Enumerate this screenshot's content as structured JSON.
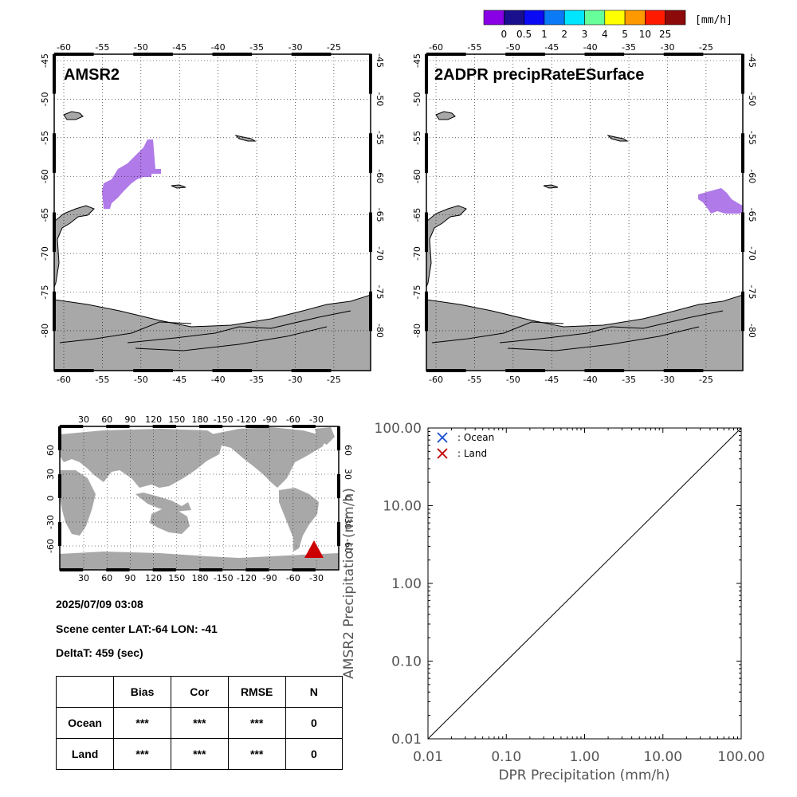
{
  "colorbar": {
    "unit": "[mm/h]",
    "ticks": [
      "0",
      "0.5",
      "1",
      "2",
      "3",
      "4",
      "5",
      "10",
      "25"
    ],
    "colors": [
      "#8a00e6",
      "#1a0f8c",
      "#0a0af5",
      "#0a7af5",
      "#00e6ff",
      "#66ff99",
      "#ffff00",
      "#ff9900",
      "#ff1a00",
      "#8c0a0a"
    ]
  },
  "panels": {
    "left_title": "AMSR2",
    "right_title": "2ADPR precipRateESurface",
    "lon_labels": [
      "-60",
      "-55",
      "-50",
      "-45",
      "-40",
      "-35",
      "-30",
      "-25"
    ],
    "lat_labels": [
      "-45",
      "-50",
      "-55",
      "-60",
      "-65",
      "-70",
      "-75",
      "-80"
    ],
    "land_color": "#a8a8a8",
    "precip_color": "#b07ae8"
  },
  "globe": {
    "lon_labels": [
      "30",
      "60",
      "90",
      "120",
      "150",
      "180",
      "-150",
      "-120",
      "-90",
      "-60",
      "-30"
    ],
    "lat_labels": [
      "60",
      "30",
      "0",
      "-30",
      "-60"
    ],
    "marker_color": "#cc0000"
  },
  "info": {
    "datetime": "2025/07/09 03:08",
    "scene_center": "Scene center LAT:-64   LON: -41",
    "deltat": "DeltaT:  459 (sec)"
  },
  "stats_table": {
    "headers": [
      "",
      "Bias",
      "Cor",
      "RMSE",
      "N"
    ],
    "rows": [
      [
        "Ocean",
        "***",
        "***",
        "***",
        "0"
      ],
      [
        "Land",
        "***",
        "***",
        "***",
        "0"
      ]
    ]
  },
  "chart_data": {
    "type": "scatter",
    "xlabel": "DPR Precipitation (mm/h)",
    "ylabel": "AMSR2 Precipitation (mm/h)",
    "xscale": "log",
    "yscale": "log",
    "xlim": [
      0.01,
      100
    ],
    "ylim": [
      0.01,
      100
    ],
    "x_ticks": [
      "0.01",
      "0.10",
      "1.00",
      "10.00",
      "100.00"
    ],
    "y_ticks": [
      "0.01",
      "0.10",
      "1.00",
      "10.00",
      "100.00"
    ],
    "series": [
      {
        "name": ": Ocean",
        "marker": "x",
        "color": "#1a4fd6",
        "x": [],
        "y": []
      },
      {
        "name": ": Land",
        "marker": "x",
        "color": "#c00000",
        "x": [],
        "y": []
      }
    ],
    "reference_line": "y = x",
    "legend_position": "top-left"
  }
}
